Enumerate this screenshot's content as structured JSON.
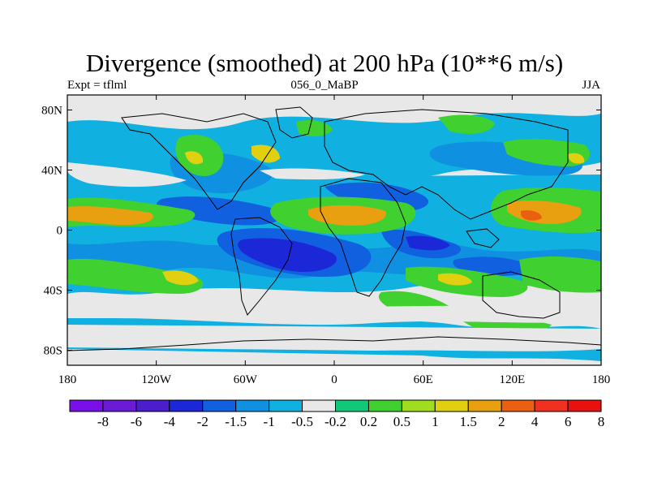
{
  "title": "Divergence (smoothed) at 200 hPa (10**6 m/s)",
  "left_label": "Expt = tflml",
  "center_label": "056_0_MaBP",
  "right_label": "JJA",
  "map": {
    "lon_range": [
      -180,
      180
    ],
    "lat_range": [
      -90,
      90
    ],
    "background": "#e8e8e8",
    "y_ticks": [
      "80N",
      "40N",
      "0",
      "40S",
      "80S"
    ],
    "x_ticks": [
      "180",
      "120W",
      "60W",
      "0",
      "60E",
      "120E",
      "180"
    ]
  },
  "colorbar": {
    "colors": [
      "#7a10e8",
      "#6b1ad6",
      "#4a1ecc",
      "#1c28d8",
      "#1060e0",
      "#1090e0",
      "#10b0e0",
      "#e8e8e8",
      "#10c878",
      "#40d030",
      "#a0dc20",
      "#e0d010",
      "#e8a010",
      "#e86010",
      "#f03020",
      "#e81010"
    ],
    "labels": [
      "-8",
      "-6",
      "-4",
      "-2",
      "-1.5",
      "-1",
      "-0.5",
      "-0.2",
      "0.2",
      "0.5",
      "1",
      "1.5",
      "2",
      "4",
      "6",
      "8"
    ]
  }
}
